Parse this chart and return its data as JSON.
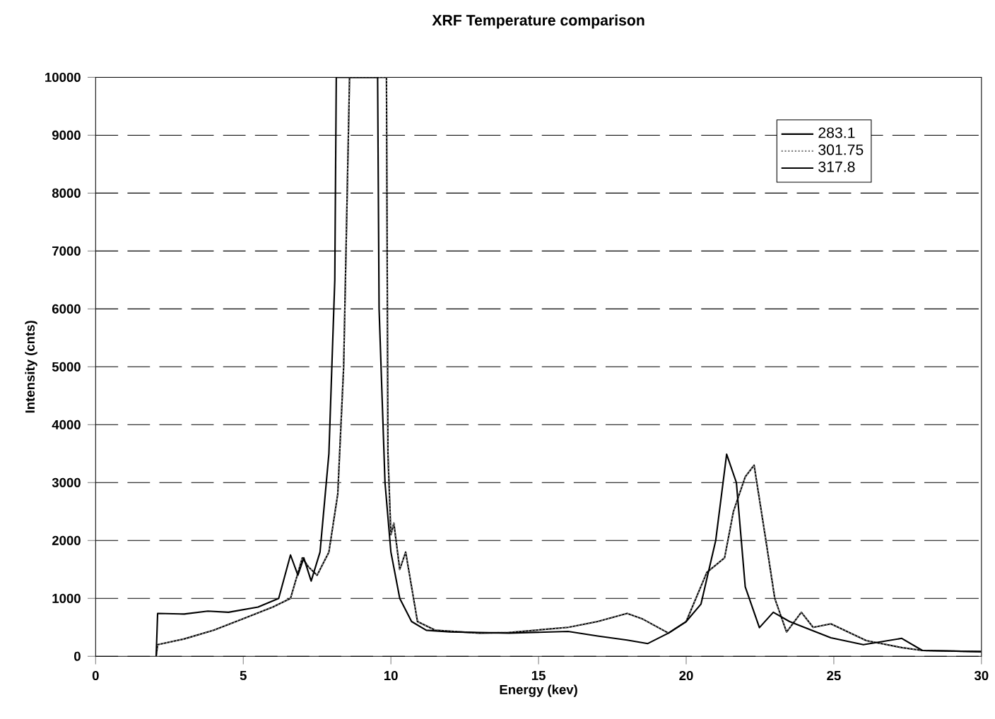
{
  "chart_data": {
    "type": "line",
    "title": "XRF Temperature comparison",
    "xlabel": "Energy (kev)",
    "ylabel": "Intensity (cnts)",
    "xlim": [
      0,
      30
    ],
    "ylim": [
      0,
      10000
    ],
    "xticks": [
      0,
      5,
      10,
      15,
      20,
      25,
      30
    ],
    "yticks": [
      0,
      1000,
      2000,
      3000,
      4000,
      5000,
      6000,
      7000,
      8000,
      9000,
      10000
    ],
    "grid": "y",
    "legend": "top right",
    "marker": "none",
    "series": [
      {
        "name": "283.1",
        "color": "#000000",
        "line_style": "solid",
        "x": [
          2.05,
          2.1,
          3,
          4,
          5,
          6,
          6.6,
          7.0,
          7.2,
          7.5,
          7.9,
          8.2,
          8.4,
          8.6,
          9.85,
          9.9,
          10.0,
          10.1,
          10.3,
          10.5,
          10.7,
          10.9,
          11.5,
          13,
          14,
          16,
          17,
          18,
          18.5,
          19.4,
          20,
          20.7,
          21.3,
          21.6,
          22,
          22.3,
          22.7,
          23,
          23.4,
          23.9,
          24.3,
          24.9,
          26.1,
          27.3,
          28,
          30
        ],
        "values": [
          0,
          200,
          300,
          450,
          650,
          850,
          1000,
          1700,
          1550,
          1400,
          1800,
          2800,
          5000,
          10000,
          10000,
          3500,
          2100,
          2300,
          1500,
          1800,
          1200,
          600,
          450,
          400,
          410,
          500,
          600,
          740,
          650,
          400,
          600,
          1450,
          1700,
          2500,
          3100,
          3300,
          2000,
          1000,
          420,
          760,
          500,
          560,
          270,
          150,
          100,
          80
        ]
      },
      {
        "name": "301.75",
        "color": "#808080",
        "line_style": "dotted",
        "x": [
          2.05,
          2.1,
          3,
          4,
          5,
          6,
          6.6,
          7.0,
          7.2,
          7.5,
          7.9,
          8.2,
          8.4,
          8.6,
          9.85,
          9.9,
          10.0,
          10.1,
          10.3,
          10.5,
          10.7,
          10.9,
          11.5,
          13,
          14,
          16,
          17,
          18,
          18.5,
          19.4,
          20,
          20.7,
          21.3,
          21.6,
          22,
          22.3,
          22.7,
          23,
          23.4,
          23.9,
          24.3,
          24.9,
          26.1,
          27.3,
          28,
          30
        ],
        "values": [
          0,
          200,
          300,
          450,
          650,
          850,
          1000,
          1700,
          1550,
          1400,
          1800,
          2800,
          5000,
          10000,
          10000,
          3500,
          2100,
          2300,
          1500,
          1800,
          1200,
          600,
          450,
          400,
          410,
          500,
          600,
          740,
          650,
          400,
          600,
          1450,
          1700,
          2500,
          3100,
          3300,
          2000,
          1000,
          420,
          760,
          500,
          560,
          270,
          150,
          100,
          80
        ]
      },
      {
        "name": "317.8",
        "color": "#000000",
        "line_style": "solid",
        "x": [
          2.05,
          2.1,
          3,
          3.8,
          4.5,
          5.5,
          6.2,
          6.6,
          6.85,
          7.05,
          7.3,
          7.6,
          7.9,
          8.1,
          8.15,
          9.55,
          9.6,
          9.8,
          10.0,
          10.3,
          10.7,
          11.2,
          12,
          14,
          16,
          17,
          18,
          18.7,
          19.4,
          20,
          20.5,
          21,
          21.37,
          21.7,
          22,
          22.48,
          22.95,
          23.5,
          24,
          24.9,
          26,
          27.3,
          28,
          30
        ],
        "values": [
          0,
          740,
          730,
          780,
          760,
          850,
          1000,
          1750,
          1400,
          1700,
          1300,
          1800,
          3500,
          6500,
          10000,
          10000,
          6000,
          3000,
          1800,
          1000,
          600,
          450,
          420,
          400,
          430,
          350,
          280,
          220,
          400,
          600,
          900,
          2000,
          3490,
          3000,
          1200,
          495,
          760,
          600,
          500,
          320,
          200,
          310,
          100,
          80
        ]
      }
    ]
  }
}
